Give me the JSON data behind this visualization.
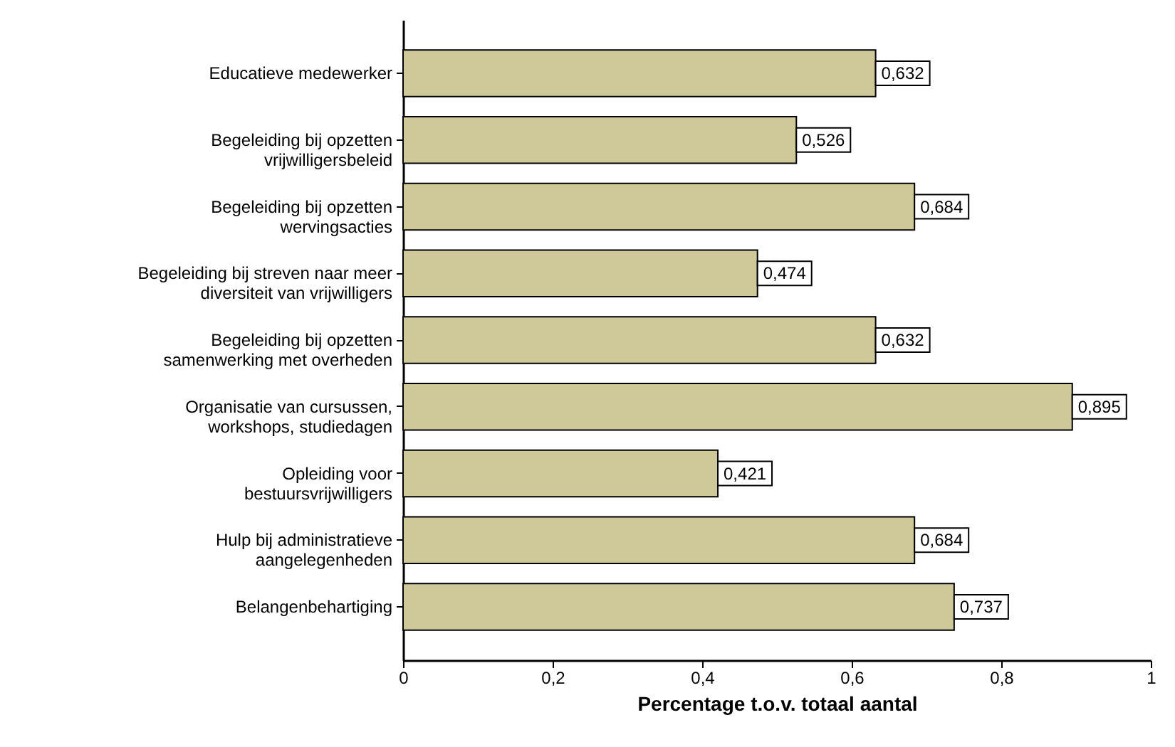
{
  "chart_data": {
    "type": "bar",
    "orientation": "horizontal",
    "xlabel": "Percentage t.o.v. totaal aantal",
    "categories": [
      "Educatieve medewerker",
      "Begeleiding bij opzetten\nvrijwilligersbeleid",
      "Begeleiding bij opzetten\nwervingsacties",
      "Begeleiding bij streven naar meer\ndiversiteit van vrijwilligers",
      "Begeleiding bij opzetten\nsamenwerking met overheden",
      "Organisatie van cursussen,\nworkshops, studiedagen",
      "Opleiding voor\nbestuursvrijwilligers",
      "Hulp bij administratieve\naangelegenheden",
      "Belangenbehartiging"
    ],
    "values": [
      0.632,
      0.526,
      0.684,
      0.474,
      0.632,
      0.895,
      0.421,
      0.684,
      0.737
    ],
    "value_labels": [
      "0,632",
      "0,526",
      "0,684",
      "0,474",
      "0,632",
      "0,895",
      "0,421",
      "0,684",
      "0,737"
    ],
    "color": "#cfc99a",
    "xlim": [
      0,
      1
    ],
    "xticks": [
      0,
      {
        "value": 0.2,
        "label": "0,2"
      },
      {
        "value": 0.4,
        "label": "0,4"
      },
      {
        "value": 0.6,
        "label": "0,6"
      },
      {
        "value": 0.8,
        "label": "0,8"
      },
      1
    ],
    "grid": false
  }
}
